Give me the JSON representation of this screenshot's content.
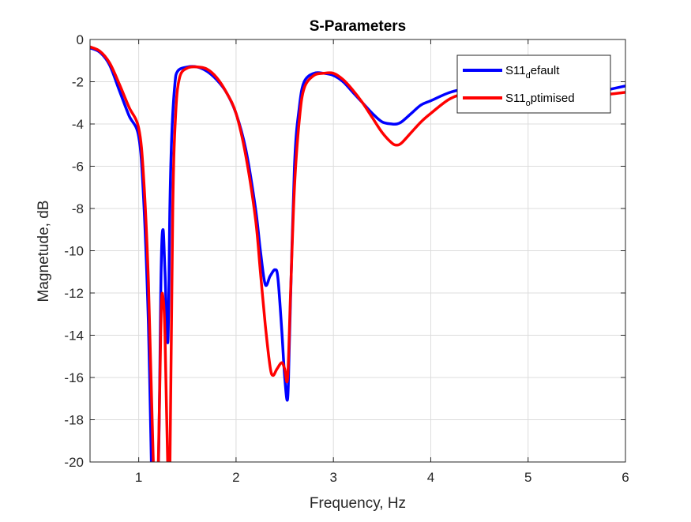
{
  "chart_data": {
    "type": "line",
    "title": "S-Parameters",
    "xlabel": "Frequency, Hz",
    "ylabel": "Magnetude, dB",
    "xlim": [
      0.5,
      6
    ],
    "ylim": [
      -20,
      0
    ],
    "xticks": [
      1,
      2,
      3,
      4,
      5,
      6
    ],
    "yticks": [
      0,
      -2,
      -4,
      -6,
      -8,
      -10,
      -12,
      -14,
      -16,
      -18,
      -20
    ],
    "grid": true,
    "legend_position": "top-right",
    "series": [
      {
        "name": "S11_default",
        "legend_main": "S11",
        "legend_sub": "d",
        "legend_rest": "efault",
        "color": "#0000ff",
        "x": [
          0.5,
          0.6,
          0.7,
          0.8,
          0.9,
          1.0,
          1.05,
          1.1,
          1.13,
          1.15,
          1.2,
          1.23,
          1.25,
          1.27,
          1.3,
          1.32,
          1.34,
          1.37,
          1.4,
          1.5,
          1.6,
          1.7,
          1.8,
          1.9,
          2.0,
          2.1,
          2.2,
          2.25,
          2.3,
          2.35,
          2.4,
          2.43,
          2.47,
          2.5,
          2.53,
          2.55,
          2.6,
          2.65,
          2.7,
          2.8,
          2.9,
          3.0,
          3.1,
          3.2,
          3.3,
          3.4,
          3.5,
          3.6,
          3.65,
          3.7,
          3.8,
          3.9,
          4.0,
          4.2,
          4.4,
          4.6,
          4.8,
          5.0,
          5.2,
          5.4,
          5.6,
          5.8,
          6.0
        ],
        "y": [
          -0.4,
          -0.6,
          -1.2,
          -2.4,
          -3.6,
          -4.6,
          -7.5,
          -13.5,
          -20.0,
          -20.5,
          -20.5,
          -11.0,
          -9.0,
          -11.0,
          -14.3,
          -8.0,
          -4.5,
          -2.2,
          -1.5,
          -1.3,
          -1.3,
          -1.5,
          -1.9,
          -2.5,
          -3.5,
          -5.2,
          -8.0,
          -10.0,
          -11.6,
          -11.2,
          -10.9,
          -11.3,
          -13.8,
          -16.0,
          -17.0,
          -14.0,
          -6.0,
          -3.2,
          -2.0,
          -1.6,
          -1.6,
          -1.7,
          -2.0,
          -2.5,
          -3.0,
          -3.5,
          -3.9,
          -4.0,
          -4.0,
          -3.9,
          -3.5,
          -3.1,
          -2.9,
          -2.5,
          -2.3,
          -2.2,
          -2.3,
          -2.3,
          -2.2,
          -2.4,
          -2.6,
          -2.4,
          -2.2
        ]
      },
      {
        "name": "S11_optimised",
        "legend_main": "S11",
        "legend_sub": "o",
        "legend_rest": "ptimised",
        "color": "#ff0000",
        "x": [
          0.5,
          0.6,
          0.7,
          0.8,
          0.9,
          1.0,
          1.05,
          1.1,
          1.15,
          1.18,
          1.2,
          1.23,
          1.25,
          1.27,
          1.3,
          1.32,
          1.35,
          1.38,
          1.42,
          1.5,
          1.6,
          1.7,
          1.8,
          1.9,
          2.0,
          2.1,
          2.2,
          2.25,
          2.3,
          2.35,
          2.38,
          2.42,
          2.47,
          2.5,
          2.53,
          2.56,
          2.6,
          2.65,
          2.7,
          2.8,
          2.9,
          3.0,
          3.1,
          3.2,
          3.3,
          3.4,
          3.5,
          3.6,
          3.65,
          3.7,
          3.8,
          3.9,
          4.0,
          4.2,
          4.4,
          4.6,
          4.8,
          5.0,
          5.2,
          5.4,
          5.6,
          5.8,
          6.0
        ],
        "y": [
          -0.35,
          -0.55,
          -1.1,
          -2.1,
          -3.2,
          -4.2,
          -6.5,
          -11.5,
          -20.0,
          -20.5,
          -20.5,
          -13.0,
          -12.2,
          -14.0,
          -20.5,
          -20.5,
          -8.0,
          -3.5,
          -1.8,
          -1.35,
          -1.3,
          -1.4,
          -1.8,
          -2.5,
          -3.5,
          -5.5,
          -8.5,
          -11.0,
          -13.5,
          -15.5,
          -15.9,
          -15.6,
          -15.3,
          -15.6,
          -16.0,
          -12.0,
          -7.0,
          -3.8,
          -2.3,
          -1.7,
          -1.6,
          -1.6,
          -1.9,
          -2.4,
          -3.0,
          -3.7,
          -4.4,
          -4.9,
          -5.0,
          -4.9,
          -4.4,
          -3.9,
          -3.5,
          -2.8,
          -2.5,
          -2.4,
          -2.4,
          -2.35,
          -2.3,
          -2.4,
          -2.6,
          -2.6,
          -2.5
        ]
      }
    ]
  }
}
